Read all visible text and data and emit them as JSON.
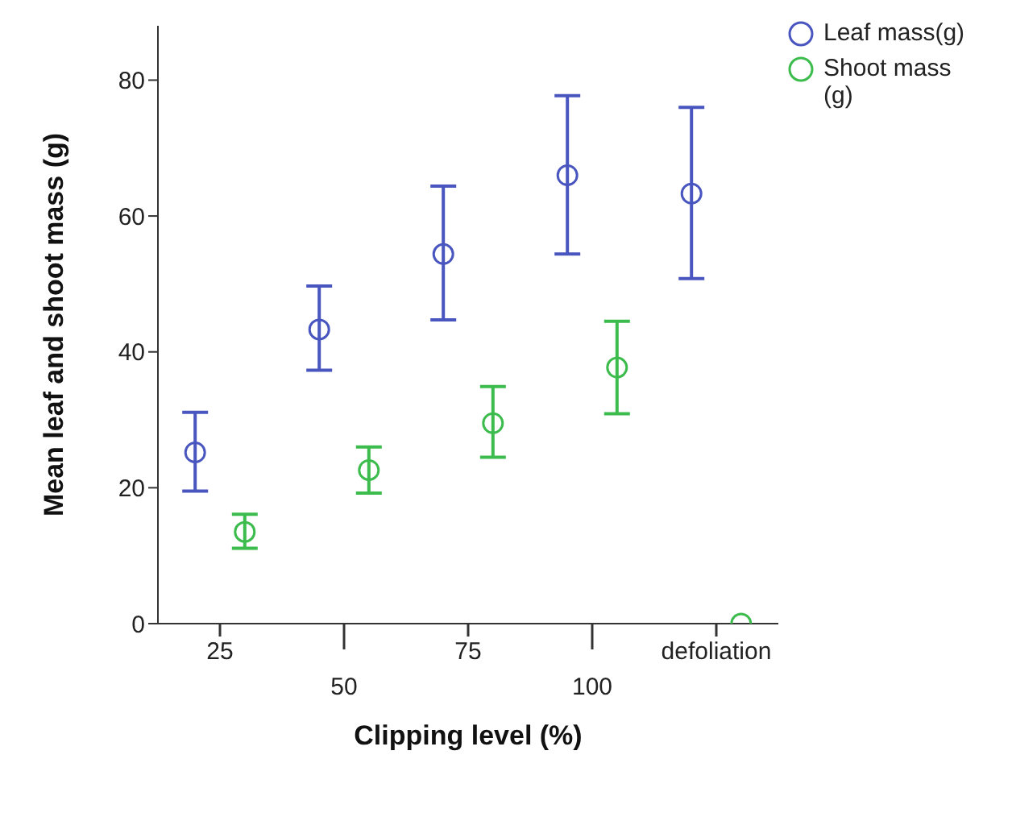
{
  "chart_data": {
    "type": "scatter",
    "xlabel": "Clipping level (%)",
    "ylabel": "Mean leaf and shoot mass (g)",
    "categories": [
      "25",
      "50",
      "75",
      "100",
      "defoliation"
    ],
    "ylim": [
      0,
      88
    ],
    "yticks": [
      0,
      20,
      40,
      60,
      80
    ],
    "grid": false,
    "legend": "top right",
    "marker": "circle",
    "series": [
      {
        "name": "Leaf mass(g)",
        "color": "#4a56c0",
        "values": [
          25.2,
          43.3,
          54.4,
          66.0,
          63.3
        ],
        "errors": [
          [
            19.5,
            31.1
          ],
          [
            37.3,
            49.7
          ],
          [
            44.7,
            64.4
          ],
          [
            54.4,
            77.7
          ],
          [
            50.8,
            76.0
          ]
        ]
      },
      {
        "name": "Shoot mass (g)",
        "color": "#3cbc4c",
        "values": [
          13.5,
          22.6,
          29.5,
          37.7,
          0
        ],
        "errors": [
          [
            11.1,
            16.1
          ],
          [
            19.2,
            26.0
          ],
          [
            24.5,
            34.9
          ],
          [
            30.9,
            44.5
          ],
          null
        ]
      }
    ]
  }
}
